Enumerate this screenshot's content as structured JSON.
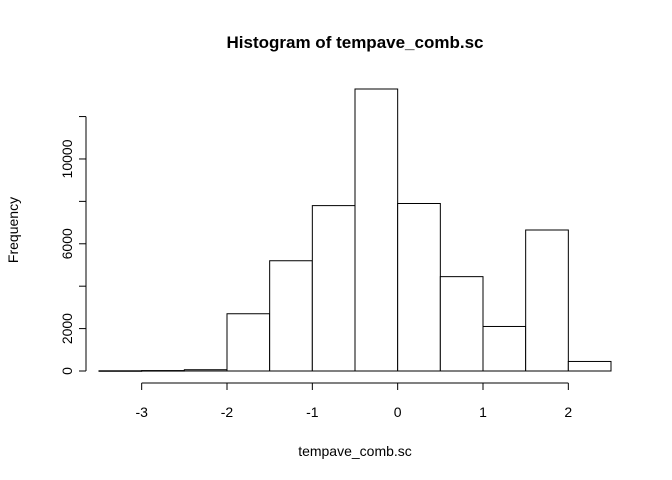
{
  "chart_data": {
    "type": "bar",
    "title": "Histogram of tempave_comb.sc",
    "xlabel": "tempave_comb.sc",
    "ylabel": "Frequency",
    "bins": [
      {
        "start": -3.5,
        "end": -3.0,
        "count": 10
      },
      {
        "start": -3.0,
        "end": -2.5,
        "count": 20
      },
      {
        "start": -2.5,
        "end": -2.0,
        "count": 60
      },
      {
        "start": -2.0,
        "end": -1.5,
        "count": 2700
      },
      {
        "start": -1.5,
        "end": -1.0,
        "count": 5200
      },
      {
        "start": -1.0,
        "end": -0.5,
        "count": 7800
      },
      {
        "start": -0.5,
        "end": 0.0,
        "count": 13300
      },
      {
        "start": 0.0,
        "end": 0.5,
        "count": 7900
      },
      {
        "start": 0.5,
        "end": 1.0,
        "count": 4450
      },
      {
        "start": 1.0,
        "end": 1.5,
        "count": 2100
      },
      {
        "start": 1.5,
        "end": 2.0,
        "count": 6650
      },
      {
        "start": 2.0,
        "end": 2.5,
        "count": 450
      }
    ],
    "xlim": [
      -3.5,
      2.5
    ],
    "ylim": [
      0,
      13300
    ],
    "x_ticks": [
      "-3",
      "-2",
      "-1",
      "0",
      "1",
      "2"
    ],
    "y_ticks": [
      "0",
      "2000",
      "6000",
      "10000"
    ],
    "grid": false,
    "legend": false
  }
}
